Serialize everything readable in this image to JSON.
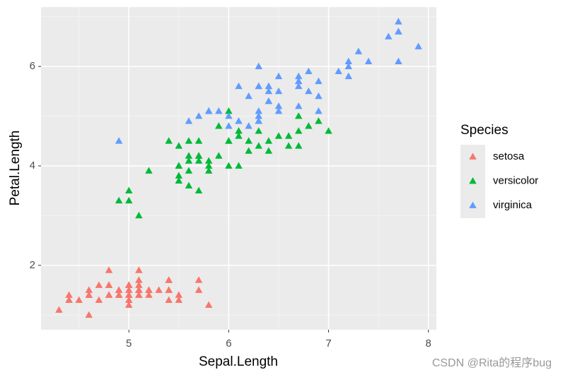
{
  "chart_data": {
    "type": "scatter",
    "x_label": "Sepal.Length",
    "y_label": "Petal.Length",
    "legend_title": "Species",
    "legend_position": "right",
    "grid": true,
    "watermark": "CSDN @Rita的程序bug",
    "xlim": [
      4.12,
      8.08
    ],
    "ylim": [
      0.705,
      7.195
    ],
    "xticks": [
      5,
      6,
      7,
      8
    ],
    "yticks": [
      2,
      4,
      6
    ],
    "x_minor_ticks": [
      4.5,
      5.5,
      6.5,
      7.5
    ],
    "y_minor_ticks": [
      1,
      3,
      5,
      7
    ],
    "series": [
      {
        "name": "setosa",
        "color": "#F8766D",
        "x": [
          5.1,
          4.9,
          4.7,
          4.6,
          5.0,
          5.4,
          4.6,
          5.0,
          4.4,
          4.9,
          5.4,
          4.8,
          4.8,
          4.3,
          5.8,
          5.7,
          5.4,
          5.1,
          5.7,
          5.1,
          5.4,
          5.1,
          4.6,
          5.1,
          4.8,
          5.0,
          5.0,
          5.2,
          5.2,
          4.7,
          4.8,
          5.4,
          5.2,
          5.5,
          4.9,
          5.0,
          5.5,
          4.9,
          4.4,
          5.1,
          5.0,
          4.5,
          4.4,
          5.0,
          5.1,
          4.8,
          5.1,
          4.6,
          5.3,
          5.0
        ],
        "values": [
          1.4,
          1.4,
          1.3,
          1.5,
          1.4,
          1.7,
          1.4,
          1.5,
          1.4,
          1.5,
          1.5,
          1.6,
          1.4,
          1.1,
          1.2,
          1.5,
          1.3,
          1.4,
          1.7,
          1.5,
          1.7,
          1.5,
          1.0,
          1.7,
          1.9,
          1.6,
          1.6,
          1.5,
          1.4,
          1.6,
          1.6,
          1.5,
          1.5,
          1.4,
          1.5,
          1.2,
          1.3,
          1.4,
          1.3,
          1.5,
          1.3,
          1.3,
          1.3,
          1.6,
          1.9,
          1.4,
          1.6,
          1.4,
          1.5,
          1.4
        ]
      },
      {
        "name": "versicolor",
        "color": "#00BA38",
        "x": [
          7.0,
          6.4,
          6.9,
          5.5,
          6.5,
          5.7,
          6.3,
          4.9,
          6.6,
          5.2,
          5.0,
          5.9,
          6.0,
          6.1,
          5.6,
          6.7,
          5.6,
          5.8,
          6.2,
          5.6,
          5.9,
          6.1,
          6.3,
          6.1,
          6.4,
          6.6,
          6.8,
          6.7,
          6.0,
          5.7,
          5.5,
          5.5,
          5.8,
          6.0,
          5.4,
          6.0,
          6.7,
          6.3,
          5.6,
          5.5,
          5.5,
          6.1,
          5.8,
          5.0,
          5.6,
          5.7,
          5.7,
          6.2,
          5.1,
          5.7
        ],
        "values": [
          4.7,
          4.5,
          4.9,
          4.0,
          4.6,
          4.5,
          4.7,
          3.3,
          4.6,
          3.9,
          3.5,
          4.2,
          4.0,
          4.7,
          3.6,
          4.4,
          4.5,
          4.1,
          4.5,
          3.9,
          4.8,
          4.0,
          4.9,
          4.7,
          4.3,
          4.4,
          4.8,
          5.0,
          4.5,
          3.5,
          3.8,
          3.7,
          3.9,
          5.1,
          4.5,
          4.5,
          4.7,
          4.4,
          4.1,
          4.0,
          4.4,
          4.6,
          4.0,
          3.3,
          4.2,
          4.2,
          4.2,
          4.3,
          3.0,
          4.1
        ]
      },
      {
        "name": "virginica",
        "color": "#619CFF",
        "x": [
          6.3,
          5.8,
          7.1,
          6.3,
          6.5,
          7.6,
          4.9,
          7.3,
          6.7,
          7.2,
          6.5,
          6.4,
          6.8,
          5.7,
          5.8,
          6.4,
          6.5,
          7.7,
          7.7,
          6.0,
          6.9,
          5.6,
          7.7,
          6.3,
          6.7,
          7.2,
          6.2,
          6.1,
          6.4,
          7.2,
          7.4,
          7.9,
          6.4,
          6.3,
          6.1,
          7.7,
          6.3,
          6.4,
          6.0,
          6.9,
          6.7,
          6.9,
          5.8,
          6.8,
          6.7,
          6.7,
          6.3,
          6.5,
          6.2,
          5.9
        ],
        "values": [
          6.0,
          5.1,
          5.9,
          5.6,
          5.8,
          6.6,
          4.5,
          6.3,
          5.8,
          6.1,
          5.1,
          5.3,
          5.5,
          5.0,
          5.1,
          5.3,
          5.5,
          6.7,
          6.9,
          5.0,
          5.7,
          4.9,
          6.7,
          4.9,
          5.7,
          6.0,
          4.8,
          4.9,
          5.6,
          5.8,
          6.1,
          6.4,
          5.6,
          5.1,
          5.6,
          6.1,
          5.6,
          5.5,
          4.8,
          5.4,
          5.6,
          5.1,
          5.1,
          5.9,
          5.7,
          5.2,
          5.0,
          5.2,
          5.4,
          5.1
        ]
      }
    ]
  }
}
